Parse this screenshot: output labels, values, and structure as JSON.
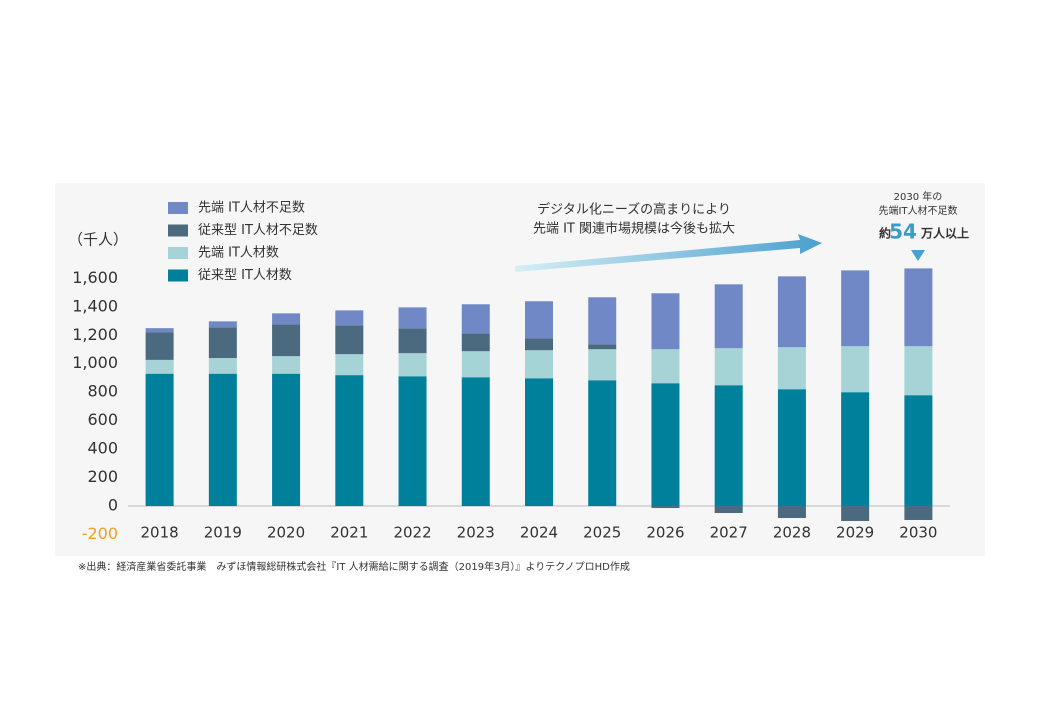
{
  "chart_data": {
    "type": "stacked_bar",
    "y_label": "（千人）",
    "categories": [
      "2018",
      "2019",
      "2020",
      "2021",
      "2022",
      "2023",
      "2024",
      "2025",
      "2026",
      "2027",
      "2028",
      "2029",
      "2030"
    ],
    "series": [
      {
        "name": "従来型 IT人材数",
        "color": "#00809b",
        "values": [
          930,
          930,
          930,
          920,
          912,
          905,
          898,
          884,
          863,
          849,
          821,
          800,
          779
        ]
      },
      {
        "name": "先端 IT人材数",
        "color": "#a6d3d6",
        "values": [
          97,
          110,
          123,
          147,
          162,
          183,
          197,
          218,
          239,
          260,
          295,
          323,
          344
        ]
      },
      {
        "name": "従来型 IT人材不足数",
        "color": "#4b6a80",
        "values": [
          195,
          216,
          224,
          203,
          175,
          126,
          84,
          35,
          -14,
          -49,
          -84,
          -105,
          -98
        ]
      },
      {
        "name": "先端 IT人材不足数",
        "color": "#7089c6",
        "values": [
          28,
          42,
          77,
          105,
          147,
          204,
          260,
          330,
          393,
          449,
          498,
          533,
          547
        ]
      }
    ],
    "ylim": [
      -200,
      1750
    ],
    "yticks": [
      -200,
      0,
      200,
      400,
      600,
      800,
      {
        "value": 1000,
        "label": "1,000"
      },
      {
        "value": 1200,
        "label": "1,200"
      },
      {
        "value": 1400,
        "label": "1,400"
      },
      {
        "value": 1600,
        "label": "1,600"
      }
    ],
    "negative_tick_color": "#f0a020",
    "annotations": {
      "trend": [
        "デジタル化ニーズの高まりにより",
        "先端 IT 関連市場規模は今後も拡大"
      ],
      "callout": [
        "2030 年の",
        "先端IT人材不足数",
        "約",
        "54",
        "万人以上"
      ]
    },
    "source": "※出典：経済産業省委託事業　みずほ情報総研株式会社『IT 人材需給に関する調査（2019年3月）』よりテクノプロHD作成"
  }
}
